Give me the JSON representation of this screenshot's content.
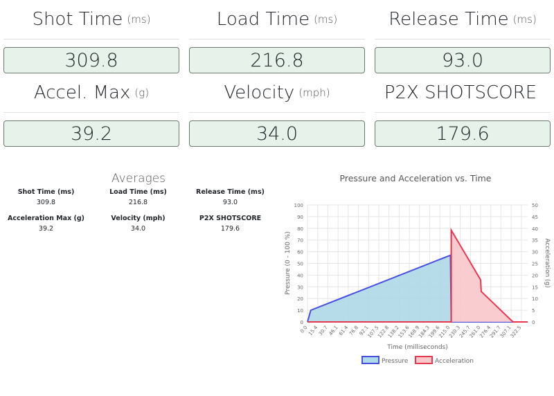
{
  "cards": [
    {
      "title": "Shot Time",
      "unit": "(ms)",
      "value": "309.8"
    },
    {
      "title": "Load Time",
      "unit": "(ms)",
      "value": "216.8"
    },
    {
      "title": "Release Time",
      "unit": "(ms)",
      "value": "93.0"
    },
    {
      "title": "Accel. Max",
      "unit": "(g)",
      "value": "39.2"
    },
    {
      "title": "Velocity",
      "unit": "(mph)",
      "value": "34.0"
    },
    {
      "title": "P2X SHOTSCORE",
      "unit": "",
      "value": "179.6"
    }
  ],
  "averages": {
    "title": "Averages",
    "items": [
      {
        "label": "Shot Time (ms)",
        "value": "309.8"
      },
      {
        "label": "Load Time (ms)",
        "value": "216.8"
      },
      {
        "label": "Release Time (ms)",
        "value": "93.0"
      },
      {
        "label": "Acceleration Max (g)",
        "value": "39.2"
      },
      {
        "label": "Velocity (mph)",
        "value": "34.0"
      },
      {
        "label": "P2X SHOTSCORE",
        "value": "179.6"
      }
    ]
  },
  "chart_data": {
    "type": "line",
    "title": "Pressure and Acceleration vs. Time",
    "xlabel": "Time (milliseconds)",
    "ylabel": "Pressure (0 - 100 %)",
    "y2label": "Acceleration (g)",
    "xticks": [
      "0.0",
      "15.4",
      "30.7",
      "46.1",
      "61.4",
      "76.8",
      "92.1",
      "107.5",
      "122.8",
      "138.2",
      "153.6",
      "168.9",
      "184.3",
      "199.6",
      "215.0",
      "230.3",
      "245.7",
      "261.0",
      "276.4",
      "291.7",
      "307.1",
      "322.5"
    ],
    "xlim": [
      0,
      332
    ],
    "ylim": [
      0,
      100
    ],
    "y2lim": [
      0,
      50
    ],
    "grid": true,
    "legend": "bottom",
    "series": [
      {
        "name": "Pressure",
        "axis": "left",
        "color": "#4a4ee0",
        "fill": "#add8e6",
        "points": [
          [
            0,
            0
          ],
          [
            5,
            10
          ],
          [
            215.5,
            57
          ],
          [
            216.8,
            0
          ],
          [
            332,
            0
          ]
        ]
      },
      {
        "name": "Acceleration",
        "axis": "right",
        "color": "#e8384f",
        "fill": "#f8c8cb",
        "points": [
          [
            0,
            0
          ],
          [
            216.8,
            0
          ],
          [
            216.8,
            39.2
          ],
          [
            261,
            18
          ],
          [
            262,
            13
          ],
          [
            309.8,
            0
          ],
          [
            332,
            0
          ]
        ]
      }
    ]
  }
}
